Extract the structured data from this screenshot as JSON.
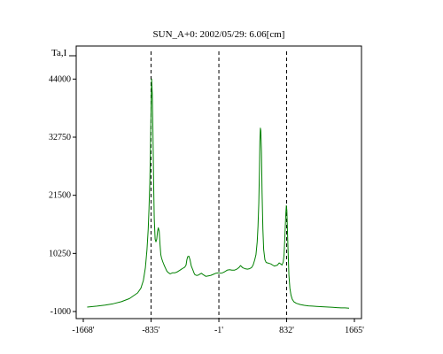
{
  "chart_data": {
    "type": "line",
    "title": "SUN_A+0: 2002/05/29: 6.06[cm]",
    "xlabel": "",
    "ylabel": "Ta,I",
    "xlim": [
      -1668,
      1665
    ],
    "ylim": [
      -1000,
      48000
    ],
    "x_ticks": [
      -1668,
      -835,
      -1,
      832,
      1665
    ],
    "x_tick_labels": [
      "-1668'",
      "-835'",
      "-1'",
      "832'",
      "1665'"
    ],
    "y_ticks": [
      -1000,
      10250,
      21500,
      32750,
      44000
    ],
    "y_tick_labels": [
      "-1000",
      "10250",
      "21500",
      "32750",
      "44000"
    ],
    "grid": false,
    "line_color": "#008000",
    "reference_lines": [
      {
        "x": -835,
        "style": "dashed",
        "color": "#000000"
      },
      {
        "x": -1,
        "style": "dashed",
        "color": "#000000"
      },
      {
        "x": 832,
        "style": "dashed",
        "color": "#000000"
      }
    ],
    "series": [
      {
        "color": "#008000",
        "x": [
          -1620,
          -1500,
          -1400,
          -1300,
          -1200,
          -1100,
          -1000,
          -960,
          -930,
          -905,
          -885,
          -870,
          -860,
          -850,
          -842,
          -835,
          -828,
          -820,
          -812,
          -803,
          -795,
          -785,
          -775,
          -765,
          -755,
          -745,
          -735,
          -725,
          -715,
          -705,
          -690,
          -675,
          -660,
          -640,
          -620,
          -600,
          -570,
          -540,
          -510,
          -480,
          -460,
          -440,
          -420,
          -405,
          -395,
          -385,
          -370,
          -355,
          -340,
          -320,
          -300,
          -280,
          -260,
          -240,
          -215,
          -190,
          -160,
          -130,
          -100,
          -70,
          -40,
          -1,
          20,
          45,
          70,
          100,
          130,
          160,
          190,
          220,
          245,
          265,
          290,
          320,
          350,
          375,
          400,
          420,
          440,
          455,
          470,
          480,
          490,
          497,
          503,
          509,
          515,
          522,
          530,
          540,
          550,
          565,
          580,
          600,
          620,
          640,
          660,
          680,
          700,
          720,
          740,
          760,
          775,
          790,
          800,
          808,
          815,
          822,
          828,
          835,
          842,
          850,
          860,
          872,
          885,
          900,
          920,
          950,
          1000,
          1050,
          1100,
          1150,
          1200,
          1250,
          1300,
          1350,
          1400,
          1450,
          1500,
          1550,
          1600
        ],
        "values": [
          -150,
          50,
          250,
          500,
          900,
          1500,
          2600,
          3500,
          5000,
          7500,
          11000,
          15000,
          19000,
          24000,
          30000,
          38000,
          44000,
          41000,
          34000,
          24000,
          17000,
          13000,
          12500,
          13000,
          14500,
          15200,
          14500,
          12000,
          10000,
          9300,
          8600,
          8000,
          7500,
          6800,
          6500,
          6300,
          6500,
          6500,
          6700,
          7000,
          7200,
          7400,
          7600,
          8000,
          9000,
          9600,
          9700,
          9000,
          7800,
          7000,
          6200,
          6000,
          6000,
          6200,
          6400,
          6100,
          5800,
          5900,
          6000,
          6200,
          6400,
          6500,
          6400,
          6500,
          6700,
          7000,
          7100,
          7000,
          7000,
          7200,
          7500,
          7900,
          7500,
          7300,
          7200,
          7300,
          7500,
          8000,
          9000,
          10000,
          12500,
          15500,
          20000,
          26000,
          32000,
          34500,
          34000,
          30000,
          22000,
          15000,
          11000,
          9000,
          8500,
          8400,
          8300,
          8200,
          8000,
          7800,
          7900,
          8000,
          8400,
          8200,
          8000,
          8600,
          10000,
          12500,
          15500,
          18000,
          19500,
          18500,
          15000,
          10500,
          6000,
          3500,
          2200,
          1400,
          900,
          600,
          350,
          200,
          100,
          50,
          0,
          -50,
          -100,
          -150,
          -200,
          -250,
          -300,
          -300,
          -350
        ]
      }
    ]
  }
}
